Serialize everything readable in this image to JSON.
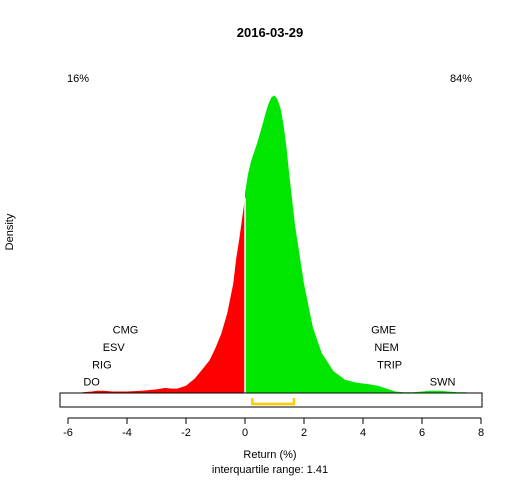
{
  "chart_data": {
    "type": "area",
    "title": "2016-03-29",
    "xlabel": "Return (%)",
    "sublabel": "interquartile range: 1.41",
    "ylabel": "Density",
    "xlim": [
      -6,
      8
    ],
    "xticks": [
      "-6",
      "-4",
      "-2",
      "0",
      "2",
      "4",
      "6",
      "8"
    ],
    "ylim": [
      0,
      0.44
    ],
    "pct_negative": "16%",
    "pct_positive": "84%",
    "colors": {
      "negative": "#ff0000",
      "positive": "#00e600",
      "iqr": "#ffcc00",
      "baseline": "#bebebe"
    },
    "iqr_range": [
      0.25,
      1.66
    ],
    "density_x": [
      -5.5,
      -5.2,
      -5.0,
      -4.8,
      -4.5,
      -4.0,
      -3.5,
      -3.0,
      -2.7,
      -2.5,
      -2.3,
      -2.0,
      -1.7,
      -1.5,
      -1.2,
      -1.0,
      -0.8,
      -0.6,
      -0.4,
      -0.3,
      -0.2,
      -0.1,
      0.0,
      0.0,
      0.1,
      0.2,
      0.3,
      0.4,
      0.5,
      0.6,
      0.7,
      0.8,
      0.9,
      1.0,
      1.1,
      1.2,
      1.3,
      1.4,
      1.5,
      1.7,
      2.0,
      2.3,
      2.6,
      3.0,
      3.4,
      3.8,
      4.2,
      4.5,
      4.8,
      5.1,
      5.4,
      5.7,
      6.0,
      6.3,
      6.6,
      6.9,
      7.2,
      7.5
    ],
    "density_y": [
      0.001,
      0.002,
      0.003,
      0.003,
      0.002,
      0.002,
      0.003,
      0.005,
      0.007,
      0.006,
      0.006,
      0.01,
      0.02,
      0.03,
      0.045,
      0.062,
      0.082,
      0.11,
      0.15,
      0.185,
      0.21,
      0.24,
      0.268,
      0.275,
      0.3,
      0.318,
      0.33,
      0.342,
      0.356,
      0.37,
      0.385,
      0.398,
      0.407,
      0.409,
      0.404,
      0.392,
      0.37,
      0.34,
      0.3,
      0.23,
      0.15,
      0.09,
      0.055,
      0.03,
      0.018,
      0.014,
      0.012,
      0.01,
      0.006,
      0.002,
      0.001,
      0.001,
      0.002,
      0.003,
      0.003,
      0.002,
      0.001,
      0.001
    ],
    "annotations": [
      {
        "text": "CMG",
        "x": -4.05,
        "y": 0.082
      },
      {
        "text": "ESV",
        "x": -4.45,
        "y": 0.058
      },
      {
        "text": "RIG",
        "x": -4.85,
        "y": 0.034
      },
      {
        "text": "DO",
        "x": -5.2,
        "y": 0.01
      },
      {
        "text": "GME",
        "x": 4.7,
        "y": 0.082
      },
      {
        "text": "NEM",
        "x": 4.8,
        "y": 0.058
      },
      {
        "text": "TRIP",
        "x": 4.9,
        "y": 0.034
      },
      {
        "text": "SWN",
        "x": 6.7,
        "y": 0.01
      }
    ]
  }
}
